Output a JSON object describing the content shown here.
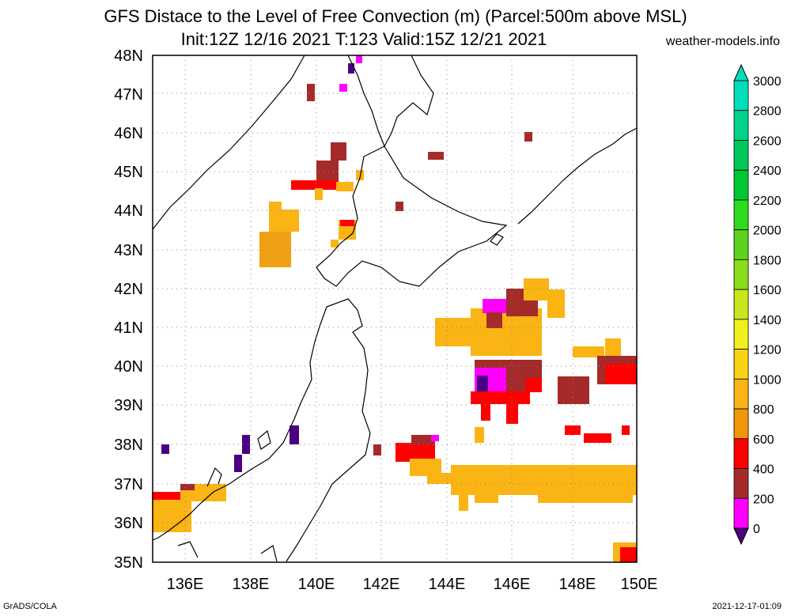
{
  "title_line1": "GFS Distace to the Level of Free Convection (m) (Parcel:500m above MSL)",
  "title_line2": "Init:12Z 12/16 2021 T:123 Valid:15Z 12/21 2021",
  "brand": "weather-models.info",
  "footer_left": "GrADS/COLA",
  "footer_right": "2021-12-17-01:09",
  "map": {
    "lat_labels": [
      "48N",
      "47N",
      "46N",
      "45N",
      "44N",
      "43N",
      "42N",
      "41N",
      "40N",
      "39N",
      "38N",
      "37N",
      "36N",
      "35N"
    ],
    "lon_labels": [
      "136E",
      "138E",
      "140E",
      "142E",
      "144E",
      "146E",
      "148E",
      "150E"
    ],
    "lat_range": [
      35,
      48
    ],
    "lon_range": [
      135,
      150
    ],
    "grid": "dotted"
  },
  "colorbar": {
    "labels": [
      "3000",
      "2800",
      "2600",
      "2400",
      "2200",
      "2000",
      "1800",
      "1600",
      "1400",
      "1200",
      "1000",
      "800",
      "600",
      "400",
      "200",
      "0"
    ],
    "colors": [
      "#00ddbb",
      "#00d28c",
      "#00c85a",
      "#00c832",
      "#2ddc1e",
      "#5ad21e",
      "#8cdc1e",
      "#c8e61e",
      "#f0f01e",
      "#fad214",
      "#fab414",
      "#f0960a",
      "#ff0000",
      "#a52a2a",
      "#ff00ff",
      "#4b0082"
    ]
  }
}
